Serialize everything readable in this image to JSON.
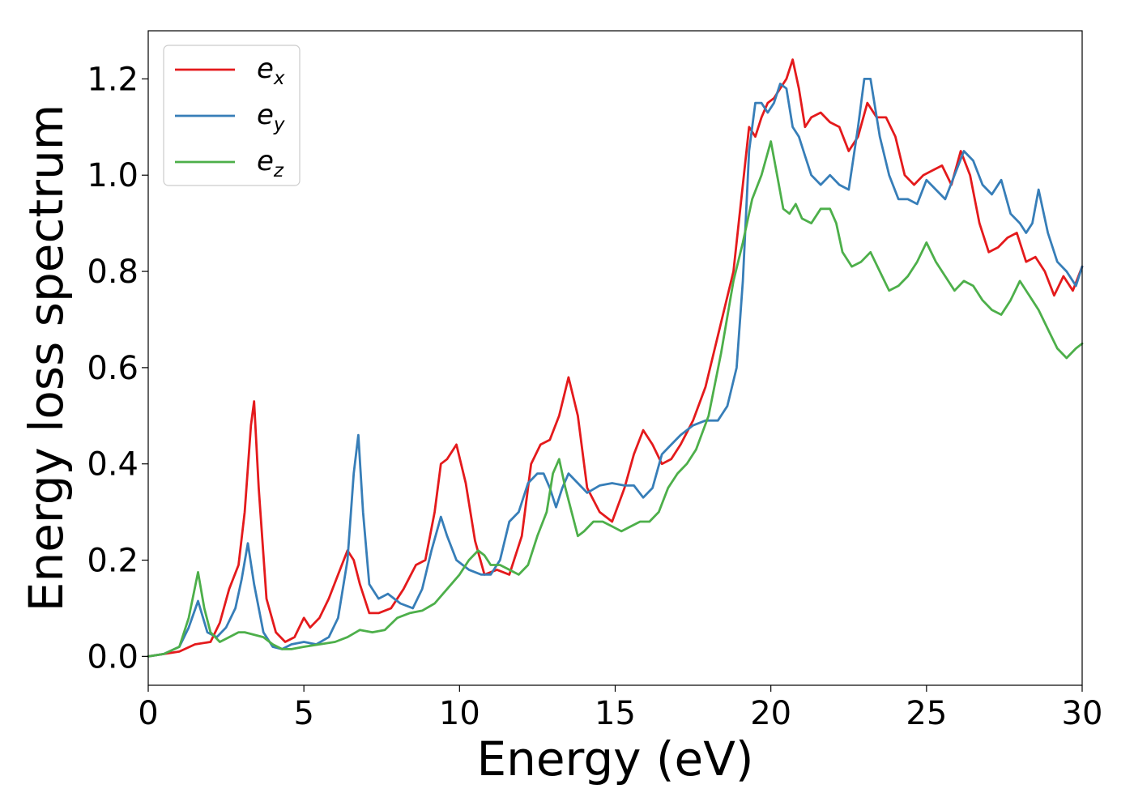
{
  "chart_data": {
    "type": "line",
    "xlabel": "Energy (eV)",
    "ylabel": "Energy loss spectrum",
    "xlim": [
      0,
      30
    ],
    "ylim": [
      -0.06,
      1.3
    ],
    "xticks": [
      0,
      5,
      10,
      15,
      20,
      25,
      30
    ],
    "xtick_labels": [
      "0",
      "5",
      "10",
      "15",
      "20",
      "25",
      "30"
    ],
    "yticks": [
      0.0,
      0.2,
      0.4,
      0.6,
      0.8,
      1.0,
      1.2
    ],
    "ytick_labels": [
      "0.0",
      "0.2",
      "0.4",
      "0.6",
      "0.8",
      "1.0",
      "1.2"
    ],
    "grid": false,
    "legend_position": "top-left",
    "series": [
      {
        "name": "e_x",
        "label_base": "e",
        "label_sub": "x",
        "color": "#e41a1c",
        "x": [
          0,
          0.5,
          1,
          1.5,
          2,
          2.3,
          2.6,
          2.9,
          3.1,
          3.3,
          3.4,
          3.55,
          3.8,
          4.1,
          4.4,
          4.7,
          5.0,
          5.2,
          5.5,
          5.8,
          6.1,
          6.4,
          6.6,
          6.8,
          7.1,
          7.4,
          7.8,
          8.2,
          8.6,
          8.9,
          9.2,
          9.4,
          9.6,
          9.9,
          10.2,
          10.5,
          10.8,
          11.2,
          11.6,
          12.0,
          12.3,
          12.6,
          12.9,
          13.2,
          13.5,
          13.8,
          14.1,
          14.5,
          14.9,
          15.3,
          15.6,
          15.9,
          16.2,
          16.5,
          16.8,
          17.1,
          17.5,
          17.9,
          18.2,
          18.5,
          18.8,
          19.1,
          19.3,
          19.5,
          19.7,
          19.9,
          20.1,
          20.3,
          20.5,
          20.7,
          20.9,
          21.1,
          21.3,
          21.6,
          21.9,
          22.2,
          22.5,
          22.8,
          23.1,
          23.4,
          23.7,
          24.0,
          24.3,
          24.6,
          24.9,
          25.2,
          25.5,
          25.8,
          26.1,
          26.4,
          26.7,
          27.0,
          27.3,
          27.6,
          27.9,
          28.2,
          28.5,
          28.8,
          29.1,
          29.4,
          29.7,
          30.0
        ],
        "y": [
          0,
          0.005,
          0.01,
          0.025,
          0.03,
          0.07,
          0.14,
          0.19,
          0.3,
          0.48,
          0.53,
          0.35,
          0.12,
          0.05,
          0.03,
          0.04,
          0.08,
          0.06,
          0.08,
          0.12,
          0.17,
          0.22,
          0.2,
          0.15,
          0.09,
          0.09,
          0.1,
          0.14,
          0.19,
          0.2,
          0.3,
          0.4,
          0.41,
          0.44,
          0.36,
          0.24,
          0.17,
          0.18,
          0.17,
          0.25,
          0.4,
          0.44,
          0.45,
          0.5,
          0.58,
          0.5,
          0.35,
          0.3,
          0.28,
          0.35,
          0.42,
          0.47,
          0.44,
          0.4,
          0.41,
          0.44,
          0.49,
          0.56,
          0.64,
          0.72,
          0.8,
          0.98,
          1.1,
          1.08,
          1.12,
          1.15,
          1.16,
          1.18,
          1.2,
          1.24,
          1.18,
          1.1,
          1.12,
          1.13,
          1.11,
          1.1,
          1.05,
          1.08,
          1.15,
          1.12,
          1.12,
          1.08,
          1.0,
          0.98,
          1.0,
          1.01,
          1.02,
          0.98,
          1.05,
          1.0,
          0.9,
          0.84,
          0.85,
          0.87,
          0.88,
          0.82,
          0.83,
          0.8,
          0.75,
          0.79,
          0.76,
          0.81
        ]
      },
      {
        "name": "e_y",
        "label_base": "e",
        "label_sub": "y",
        "color": "#377eb8",
        "x": [
          0,
          0.5,
          1,
          1.3,
          1.6,
          1.9,
          2.2,
          2.5,
          2.8,
          3.0,
          3.2,
          3.4,
          3.7,
          4.0,
          4.3,
          4.6,
          5.0,
          5.4,
          5.8,
          6.1,
          6.4,
          6.6,
          6.75,
          6.9,
          7.1,
          7.4,
          7.7,
          8.1,
          8.5,
          8.8,
          9.1,
          9.4,
          9.6,
          9.9,
          10.3,
          10.7,
          11.0,
          11.3,
          11.6,
          11.9,
          12.2,
          12.5,
          12.7,
          12.9,
          13.1,
          13.3,
          13.5,
          13.8,
          14.1,
          14.5,
          14.9,
          15.3,
          15.6,
          15.9,
          16.2,
          16.5,
          16.8,
          17.1,
          17.5,
          17.9,
          18.3,
          18.6,
          18.9,
          19.1,
          19.3,
          19.5,
          19.7,
          19.9,
          20.1,
          20.3,
          20.5,
          20.7,
          20.9,
          21.1,
          21.3,
          21.6,
          21.9,
          22.2,
          22.5,
          22.8,
          23.0,
          23.2,
          23.5,
          23.8,
          24.1,
          24.4,
          24.7,
          25.0,
          25.3,
          25.6,
          25.9,
          26.2,
          26.5,
          26.8,
          27.1,
          27.4,
          27.7,
          28.0,
          28.2,
          28.4,
          28.6,
          28.9,
          29.2,
          29.5,
          29.8,
          30.0
        ],
        "y": [
          0,
          0.005,
          0.02,
          0.06,
          0.115,
          0.05,
          0.04,
          0.06,
          0.1,
          0.16,
          0.235,
          0.15,
          0.05,
          0.02,
          0.015,
          0.025,
          0.03,
          0.025,
          0.04,
          0.08,
          0.2,
          0.38,
          0.46,
          0.3,
          0.15,
          0.12,
          0.13,
          0.11,
          0.1,
          0.14,
          0.22,
          0.29,
          0.25,
          0.2,
          0.18,
          0.17,
          0.17,
          0.2,
          0.28,
          0.3,
          0.36,
          0.38,
          0.38,
          0.35,
          0.31,
          0.35,
          0.38,
          0.36,
          0.34,
          0.355,
          0.36,
          0.355,
          0.355,
          0.33,
          0.35,
          0.42,
          0.44,
          0.46,
          0.48,
          0.49,
          0.49,
          0.52,
          0.6,
          0.78,
          1.05,
          1.15,
          1.15,
          1.13,
          1.15,
          1.19,
          1.18,
          1.1,
          1.08,
          1.04,
          1.0,
          0.98,
          1.0,
          0.98,
          0.97,
          1.1,
          1.2,
          1.2,
          1.08,
          1.0,
          0.95,
          0.95,
          0.94,
          0.99,
          0.97,
          0.95,
          1.0,
          1.05,
          1.03,
          0.98,
          0.96,
          0.99,
          0.92,
          0.9,
          0.88,
          0.9,
          0.97,
          0.88,
          0.82,
          0.8,
          0.77,
          0.81
        ]
      },
      {
        "name": "e_z",
        "label_base": "e",
        "label_sub": "z",
        "color": "#4daf4a",
        "x": [
          0,
          0.5,
          1,
          1.3,
          1.6,
          1.8,
          2.0,
          2.3,
          2.6,
          2.9,
          3.1,
          3.4,
          3.7,
          4.0,
          4.3,
          4.6,
          5.0,
          5.5,
          6.0,
          6.4,
          6.8,
          7.2,
          7.6,
          8.0,
          8.4,
          8.8,
          9.2,
          9.6,
          10.0,
          10.3,
          10.6,
          10.8,
          11.0,
          11.3,
          11.6,
          11.9,
          12.2,
          12.5,
          12.8,
          13.0,
          13.2,
          13.4,
          13.6,
          13.8,
          14.0,
          14.3,
          14.6,
          14.9,
          15.2,
          15.5,
          15.8,
          16.1,
          16.4,
          16.7,
          17.0,
          17.3,
          17.6,
          18.0,
          18.4,
          18.8,
          19.1,
          19.4,
          19.7,
          20.0,
          20.2,
          20.4,
          20.6,
          20.8,
          21.0,
          21.3,
          21.6,
          21.9,
          22.1,
          22.3,
          22.6,
          22.9,
          23.2,
          23.5,
          23.8,
          24.1,
          24.4,
          24.7,
          25.0,
          25.3,
          25.6,
          25.9,
          26.2,
          26.5,
          26.8,
          27.1,
          27.4,
          27.7,
          28.0,
          28.3,
          28.6,
          28.9,
          29.2,
          29.5,
          29.8,
          30.0
        ],
        "y": [
          0,
          0.005,
          0.02,
          0.08,
          0.175,
          0.1,
          0.05,
          0.03,
          0.04,
          0.05,
          0.05,
          0.045,
          0.04,
          0.025,
          0.015,
          0.015,
          0.02,
          0.025,
          0.03,
          0.04,
          0.055,
          0.05,
          0.055,
          0.08,
          0.09,
          0.095,
          0.11,
          0.14,
          0.17,
          0.2,
          0.22,
          0.21,
          0.19,
          0.19,
          0.18,
          0.17,
          0.19,
          0.25,
          0.3,
          0.38,
          0.41,
          0.35,
          0.3,
          0.25,
          0.26,
          0.28,
          0.28,
          0.27,
          0.26,
          0.27,
          0.28,
          0.28,
          0.3,
          0.35,
          0.38,
          0.4,
          0.43,
          0.5,
          0.63,
          0.78,
          0.86,
          0.95,
          1.0,
          1.07,
          1.0,
          0.93,
          0.92,
          0.94,
          0.91,
          0.9,
          0.93,
          0.93,
          0.9,
          0.84,
          0.81,
          0.82,
          0.84,
          0.8,
          0.76,
          0.77,
          0.79,
          0.82,
          0.86,
          0.82,
          0.79,
          0.76,
          0.78,
          0.77,
          0.74,
          0.72,
          0.71,
          0.74,
          0.78,
          0.75,
          0.72,
          0.68,
          0.64,
          0.62,
          0.64,
          0.65
        ]
      }
    ]
  }
}
